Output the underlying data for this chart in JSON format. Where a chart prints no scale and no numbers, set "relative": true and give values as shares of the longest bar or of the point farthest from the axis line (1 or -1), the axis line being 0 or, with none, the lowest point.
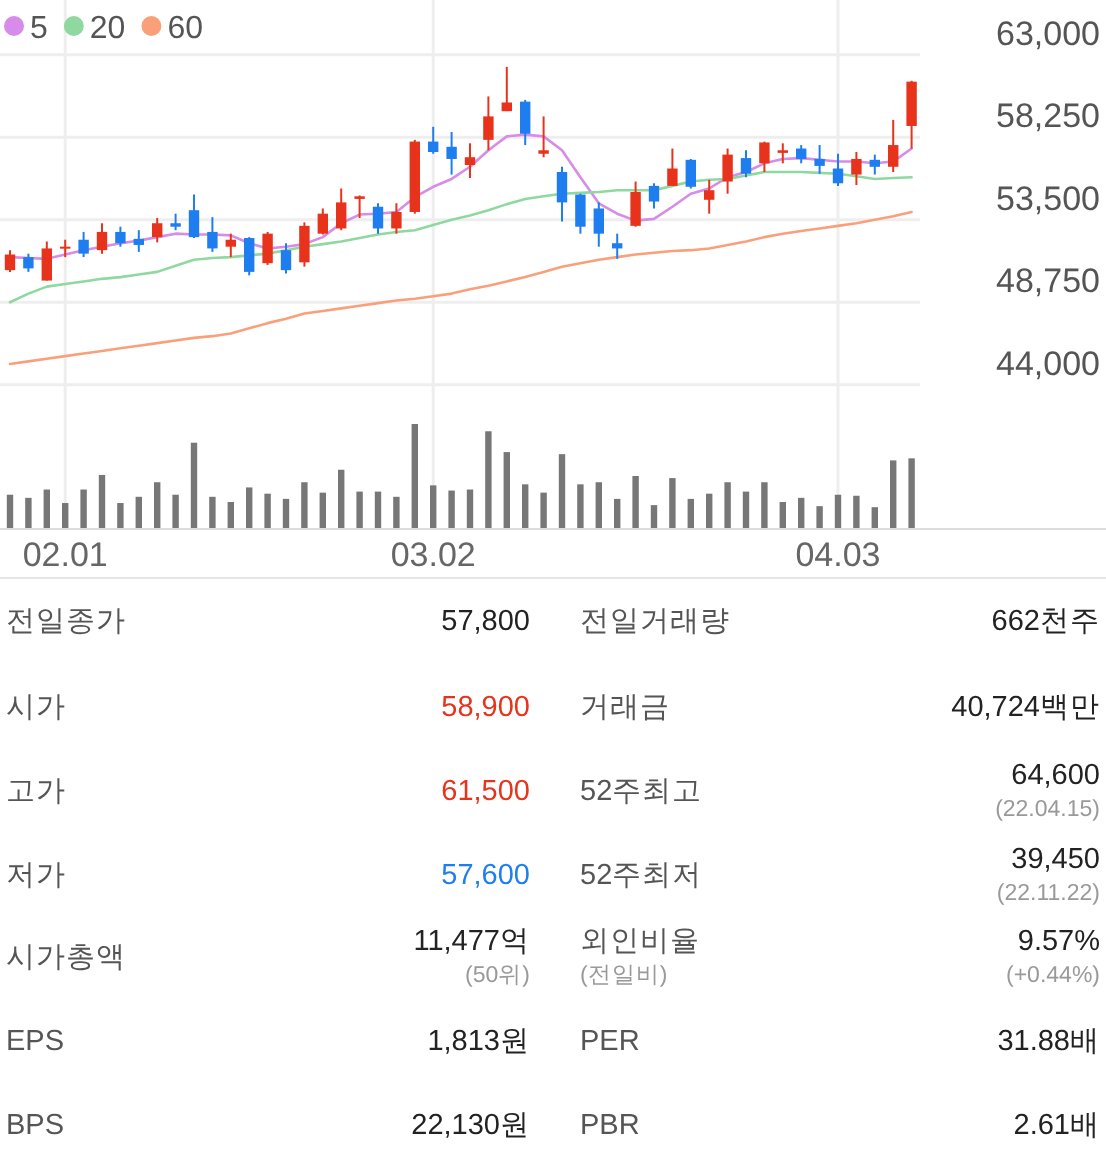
{
  "chart_data": [
    {
      "type": "candlestick",
      "categories": [
        null,
        null,
        null,
        "02.01",
        null,
        null,
        null,
        null,
        null,
        null,
        null,
        null,
        null,
        null,
        null,
        null,
        null,
        null,
        null,
        null,
        null,
        null,
        null,
        "03.02",
        null,
        null,
        null,
        null,
        null,
        null,
        null,
        null,
        null,
        null,
        null,
        null,
        null,
        null,
        null,
        null,
        null,
        null,
        null,
        null,
        null,
        "04.03",
        null,
        null,
        null,
        null
      ],
      "ohlc": [
        [
          50600,
          51750,
          50500,
          51500
        ],
        [
          51350,
          51550,
          50500,
          50700
        ],
        [
          50000,
          52250,
          50000,
          51850
        ],
        [
          51850,
          52350,
          51350,
          51950
        ],
        [
          52350,
          52800,
          51350,
          51550
        ],
        [
          51750,
          53300,
          51550,
          52800
        ],
        [
          52800,
          53100,
          51950,
          52150
        ],
        [
          52400,
          52900,
          51650,
          52050
        ],
        [
          52500,
          53600,
          52200,
          53300
        ],
        [
          53300,
          53850,
          52900,
          53100
        ],
        [
          54050,
          54950,
          52450,
          52500
        ],
        [
          52800,
          53650,
          51650,
          51850
        ],
        [
          51950,
          52700,
          51350,
          52350
        ],
        [
          52450,
          52500,
          50300,
          50500
        ],
        [
          51000,
          52800,
          50900,
          52700
        ],
        [
          51750,
          52150,
          50400,
          50600
        ],
        [
          51050,
          53350,
          50800,
          53150
        ],
        [
          52700,
          54150,
          52650,
          53850
        ],
        [
          53000,
          55300,
          52900,
          54500
        ],
        [
          54700,
          54900,
          53600,
          54850
        ],
        [
          54250,
          54450,
          52700,
          53000
        ],
        [
          53000,
          54450,
          52700,
          53950
        ],
        [
          53950,
          58100,
          53850,
          58000
        ],
        [
          58000,
          58850,
          57300,
          57400
        ],
        [
          57700,
          58550,
          56100,
          57000
        ],
        [
          56650,
          57900,
          55900,
          57100
        ],
        [
          58100,
          60600,
          57500,
          59450
        ],
        [
          59750,
          62300,
          59750,
          60250
        ],
        [
          60300,
          60400,
          57800,
          58450
        ],
        [
          57300,
          59450,
          57100,
          57500
        ],
        [
          56250,
          56550,
          53400,
          54500
        ],
        [
          54950,
          55000,
          52700,
          53100
        ],
        [
          54150,
          54500,
          51950,
          52700
        ],
        [
          52150,
          52700,
          51250,
          51850
        ],
        [
          53150,
          55700,
          53100,
          55100
        ],
        [
          55450,
          55600,
          54150,
          54550
        ],
        [
          55450,
          57600,
          55450,
          56450
        ],
        [
          56950,
          57000,
          55300,
          55400
        ],
        [
          54650,
          55800,
          53850,
          55200
        ],
        [
          55700,
          57600,
          55000,
          57250
        ],
        [
          57050,
          57500,
          55950,
          56150
        ],
        [
          56750,
          58000,
          56250,
          57950
        ],
        [
          57350,
          57900,
          56750,
          57500
        ],
        [
          57600,
          57800,
          56750,
          57000
        ],
        [
          57000,
          57800,
          56150,
          56600
        ],
        [
          56450,
          57300,
          55450,
          55600
        ],
        [
          56100,
          57400,
          55500,
          57000
        ],
        [
          56950,
          57250,
          56100,
          56550
        ],
        [
          56550,
          59250,
          56250,
          57800
        ],
        [
          58900,
          61500,
          57600,
          61450
        ]
      ],
      "colors": [
        "#e8331c",
        "#1e7ef0",
        "#e8331c",
        "#e8331c",
        "#1e7ef0",
        "#e8331c",
        "#1e7ef0",
        "#1e7ef0",
        "#e8331c",
        "#1e7ef0",
        "#1e7ef0",
        "#1e7ef0",
        "#e8331c",
        "#1e7ef0",
        "#e8331c",
        "#1e7ef0",
        "#e8331c",
        "#e8331c",
        "#e8331c",
        "#e8331c",
        "#1e7ef0",
        "#e8331c",
        "#e8331c",
        "#1e7ef0",
        "#1e7ef0",
        "#e8331c",
        "#e8331c",
        "#e8331c",
        "#1e7ef0",
        "#e8331c",
        "#1e7ef0",
        "#1e7ef0",
        "#1e7ef0",
        "#1e7ef0",
        "#e8331c",
        "#1e7ef0",
        "#e8331c",
        "#1e7ef0",
        "#e8331c",
        "#e8331c",
        "#1e7ef0",
        "#e8331c",
        "#e8331c",
        "#1e7ef0",
        "#1e7ef0",
        "#1e7ef0",
        "#e8331c",
        "#1e7ef0",
        "#e8331c",
        "#e8331c"
      ],
      "series": [
        {
          "type": "line",
          "name": "5",
          "color": "#d68ce8",
          "values": [
            51350,
            51300,
            51250,
            51500,
            51750,
            51950,
            52150,
            52300,
            52500,
            52700,
            52650,
            52650,
            52600,
            52150,
            51850,
            51950,
            52100,
            52500,
            53300,
            53800,
            53850,
            53950,
            54800,
            55400,
            55850,
            56550,
            57500,
            58300,
            58400,
            58300,
            57500,
            55950,
            54450,
            53850,
            53450,
            53550,
            54250,
            55000,
            55300,
            55950,
            56250,
            56750,
            57000,
            57050,
            56950,
            56850,
            56850,
            56750,
            56850,
            57600
          ]
        },
        {
          "type": "line",
          "name": "20",
          "color": "#8fd9a0",
          "values": [
            48750,
            49250,
            49650,
            49800,
            49950,
            50100,
            50200,
            50350,
            50500,
            50850,
            51200,
            51300,
            51350,
            51450,
            51550,
            51750,
            51950,
            52100,
            52250,
            52450,
            52650,
            52800,
            52900,
            53200,
            53500,
            53750,
            54050,
            54400,
            54700,
            54850,
            55000,
            55050,
            55100,
            55200,
            55200,
            55200,
            55450,
            55700,
            55800,
            55850,
            56050,
            56250,
            56250,
            56250,
            56200,
            56150,
            56000,
            55850,
            55900,
            55950
          ]
        },
        {
          "type": "line",
          "name": "60",
          "color": "#f9a07a",
          "values": [
            45200,
            45350,
            45500,
            45650,
            45800,
            45950,
            46100,
            46250,
            46400,
            46550,
            46700,
            46800,
            46950,
            47250,
            47550,
            47800,
            48100,
            48250,
            48400,
            48550,
            48700,
            48850,
            48950,
            49100,
            49250,
            49500,
            49700,
            49950,
            50200,
            50500,
            50800,
            51000,
            51200,
            51350,
            51500,
            51600,
            51700,
            51750,
            51850,
            52050,
            52250,
            52500,
            52700,
            52850,
            53000,
            53150,
            53300,
            53500,
            53700,
            53950
          ]
        }
      ],
      "ylim": [
        42550,
        66150
      ],
      "yticks": [
        {
          "value": 63000,
          "label": "63,000"
        },
        {
          "value": 58250,
          "label": "58,250"
        },
        {
          "value": 53500,
          "label": "53,500"
        },
        {
          "value": 48750,
          "label": "48,750"
        },
        {
          "value": 44000,
          "label": "44,000"
        }
      ],
      "grid": true,
      "legend": "top left",
      "tick_labels": "y"
    },
    {
      "type": "bar",
      "relative": true,
      "color": "#777777",
      "grid": "x",
      "categories": [
        null,
        null,
        null,
        "02.01",
        null,
        null,
        null,
        null,
        null,
        null,
        null,
        null,
        null,
        null,
        null,
        null,
        null,
        null,
        null,
        null,
        null,
        null,
        null,
        "03.02",
        null,
        null,
        null,
        null,
        null,
        null,
        null,
        null,
        null,
        null,
        null,
        null,
        null,
        null,
        null,
        null,
        null,
        null,
        null,
        null,
        null,
        "04.03",
        null,
        null,
        null,
        null
      ],
      "values": [
        0.32,
        0.29,
        0.37,
        0.24,
        0.37,
        0.51,
        0.24,
        0.3,
        0.44,
        0.32,
        0.82,
        0.3,
        0.25,
        0.39,
        0.33,
        0.28,
        0.44,
        0.34,
        0.56,
        0.35,
        0.35,
        0.3,
        1,
        0.41,
        0.36,
        0.37,
        0.93,
        0.73,
        0.42,
        0.34,
        0.71,
        0.42,
        0.44,
        0.28,
        0.5,
        0.22,
        0.48,
        0.28,
        0.33,
        0.44,
        0.35,
        0.44,
        0.25,
        0.29,
        0.21,
        0.32,
        0.31,
        0.2,
        0.65,
        0.67
      ]
    },
    {
      "type": "other",
      "annotations": [
        "전일종가",
        "57,800",
        "전일거래량",
        "662천주",
        "시가",
        "58,900",
        "거래금",
        "40,724백만",
        "고가",
        "61,500",
        "52주최고",
        "64,600\n(22.04.15)",
        "저가",
        "57,600",
        "52주최저",
        "39,450\n(22.11.22)",
        "시가총액",
        "11,477억\n(50위)",
        "외인비율\n(전일비)",
        "9.57%\n(+0.44%)",
        "EPS",
        "1,813원",
        "PER",
        "31.88배",
        "BPS",
        "22,130원",
        "PBR",
        "2.61배"
      ],
      "colors": [
        "#555555",
        "#222222",
        "#555555",
        "#222222",
        "#555555",
        "#e8331c",
        "#555555",
        "#222222",
        "#555555",
        "#e8331c",
        "#555555",
        "#222222",
        "#555555",
        "#1e7ef0",
        "#555555",
        "#222222",
        "#555555",
        "#222222",
        "#555555",
        "#222222",
        "#555555",
        "#222222",
        "#555555",
        "#222222",
        "#555555",
        "#222222",
        "#555555",
        "#222222"
      ]
    }
  ]
}
